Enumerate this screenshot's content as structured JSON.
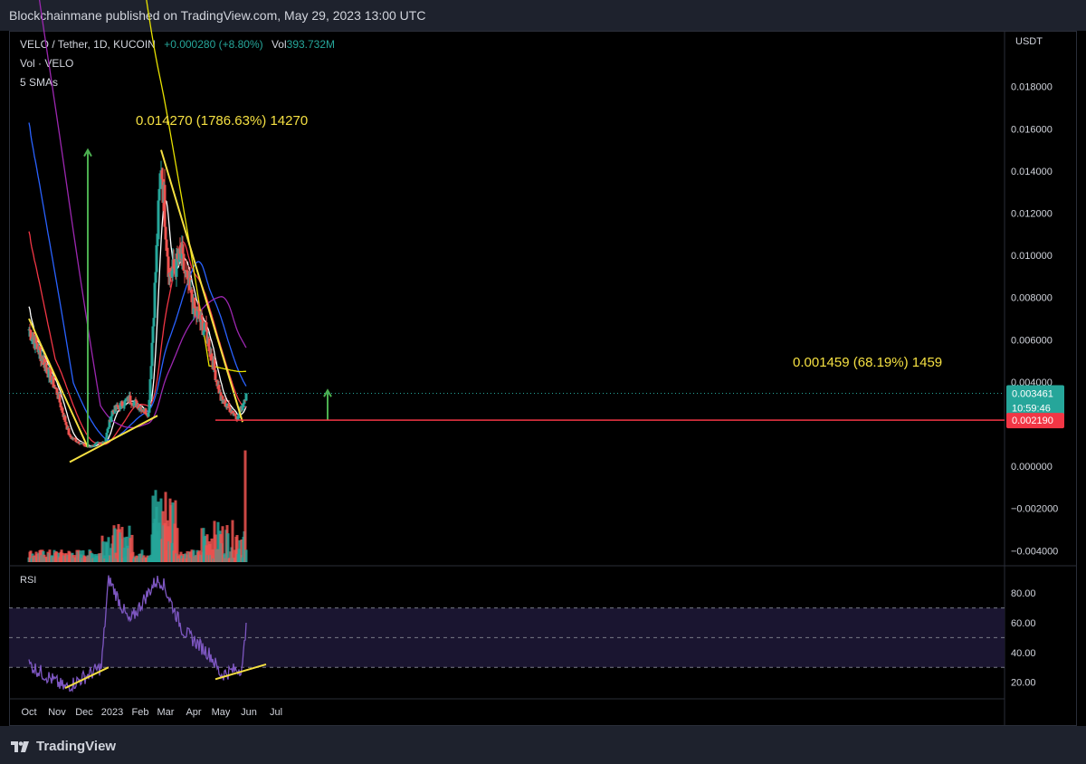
{
  "header": {
    "published": "Blockchainmane published on TradingView.com, May 29, 2023 13:00 UTC",
    "symbol": "VELO / Tether, 1D, KUCOIN",
    "change": "+0.000280 (+8.80%)",
    "volume_label": "Vol",
    "volume_value": "393.732M",
    "vol_series": "Vol · VELO",
    "smas": "5 SMAs"
  },
  "footer": {
    "brand": "TradingView"
  },
  "chart_data": [
    {
      "type": "candlestick",
      "title": "VELO / Tether, 1D, KUCOIN",
      "currency": "USDT",
      "ylim": [
        -0.0045,
        0.0205
      ],
      "y_ticks": [
        "0.018000",
        "0.016000",
        "0.014000",
        "0.012000",
        "0.010000",
        "0.008000",
        "0.006000",
        "0.004000",
        "0.002000",
        "0.000000",
        "−0.002000",
        "−0.004000"
      ],
      "x_ticks": [
        "Oct",
        "Nov",
        "Dec",
        "2023",
        "Feb",
        "Mar",
        "Apr",
        "May",
        "Jun",
        "Jul"
      ],
      "price_key_points": [
        {
          "date": "2022-10-01",
          "close": 0.0065
        },
        {
          "date": "2022-10-15",
          "close": 0.0052
        },
        {
          "date": "2022-11-01",
          "close": 0.0035
        },
        {
          "date": "2022-11-15",
          "close": 0.0014
        },
        {
          "date": "2022-12-05",
          "close": 0.0009
        },
        {
          "date": "2022-12-24",
          "close": 0.0012
        },
        {
          "date": "2023-01-01",
          "close": 0.0026
        },
        {
          "date": "2023-01-20",
          "close": 0.0032
        },
        {
          "date": "2023-02-10",
          "close": 0.0025
        },
        {
          "date": "2023-02-17",
          "close": 0.0084
        },
        {
          "date": "2023-02-24",
          "close": 0.0145
        },
        {
          "date": "2023-03-05",
          "close": 0.009
        },
        {
          "date": "2023-03-18",
          "close": 0.0099
        },
        {
          "date": "2023-04-01",
          "close": 0.0075
        },
        {
          "date": "2023-04-15",
          "close": 0.0063
        },
        {
          "date": "2023-05-01",
          "close": 0.0032
        },
        {
          "date": "2023-05-20",
          "close": 0.0023
        },
        {
          "date": "2023-05-29",
          "close": 0.003461
        }
      ],
      "price_labels": [
        {
          "value": "0.003461",
          "sub": "10:59:46",
          "color": "#26a69a"
        },
        {
          "value": "0.002190",
          "color": "#f23645"
        }
      ],
      "measurements": [
        {
          "text": "0.014270 (1786.63%) 14270",
          "color": "#f5e042"
        },
        {
          "text": "0.001459 (68.19%) 1459",
          "color": "#f5e042"
        }
      ],
      "sma_colors": [
        "#ffffff",
        "#f23645",
        "#2962ff",
        "#9c27b0",
        "#e8e200"
      ],
      "volume_colors": {
        "up": "#26a69a",
        "down": "#ef5350"
      }
    },
    {
      "type": "line",
      "title": "RSI",
      "ylim": [
        12,
        94
      ],
      "y_ticks": [
        "80.00",
        "60.00",
        "40.00",
        "20.00"
      ],
      "bands": [
        70,
        50,
        30
      ],
      "line_color": "#7e57c2",
      "key_points": [
        {
          "date": "2022-10-01",
          "v": 32
        },
        {
          "date": "2022-11-10",
          "v": 16
        },
        {
          "date": "2022-12-20",
          "v": 30
        },
        {
          "date": "2022-12-28",
          "v": 90
        },
        {
          "date": "2023-01-20",
          "v": 60
        },
        {
          "date": "2023-02-18",
          "v": 88
        },
        {
          "date": "2023-02-25",
          "v": 88
        },
        {
          "date": "2023-03-20",
          "v": 55
        },
        {
          "date": "2023-04-20",
          "v": 38
        },
        {
          "date": "2023-05-01",
          "v": 25
        },
        {
          "date": "2023-05-25",
          "v": 30
        },
        {
          "date": "2023-05-29",
          "v": 60
        }
      ]
    }
  ]
}
